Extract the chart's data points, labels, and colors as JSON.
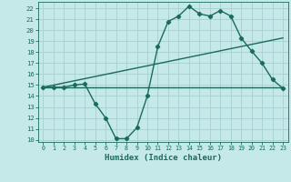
{
  "title": "",
  "xlabel": "Humidex (Indice chaleur)",
  "xlim": [
    -0.5,
    23.5
  ],
  "ylim": [
    9.8,
    22.6
  ],
  "yticks": [
    10,
    11,
    12,
    13,
    14,
    15,
    16,
    17,
    18,
    19,
    20,
    21,
    22
  ],
  "xticks": [
    0,
    1,
    2,
    3,
    4,
    5,
    6,
    7,
    8,
    9,
    10,
    11,
    12,
    13,
    14,
    15,
    16,
    17,
    18,
    19,
    20,
    21,
    22,
    23
  ],
  "bg_color": "#c5e8e8",
  "line_color": "#1a6b5a",
  "grid_color": "#a8d0d0",
  "curve1_x": [
    0,
    1,
    2,
    3,
    4,
    5,
    6,
    7,
    8,
    9,
    10,
    11,
    12,
    13,
    14,
    15,
    16,
    17,
    18,
    19,
    20,
    21,
    22,
    23
  ],
  "curve1_y": [
    14.8,
    14.8,
    14.8,
    15.0,
    15.1,
    13.3,
    12.0,
    10.1,
    10.1,
    11.1,
    14.0,
    18.5,
    20.8,
    21.3,
    22.2,
    21.5,
    21.3,
    21.8,
    21.3,
    19.3,
    18.1,
    17.0,
    15.5,
    14.7
  ],
  "curve2_x": [
    0,
    23
  ],
  "curve2_y": [
    14.8,
    14.8
  ],
  "curve3_x": [
    0,
    23
  ],
  "curve3_y": [
    14.8,
    19.3
  ]
}
